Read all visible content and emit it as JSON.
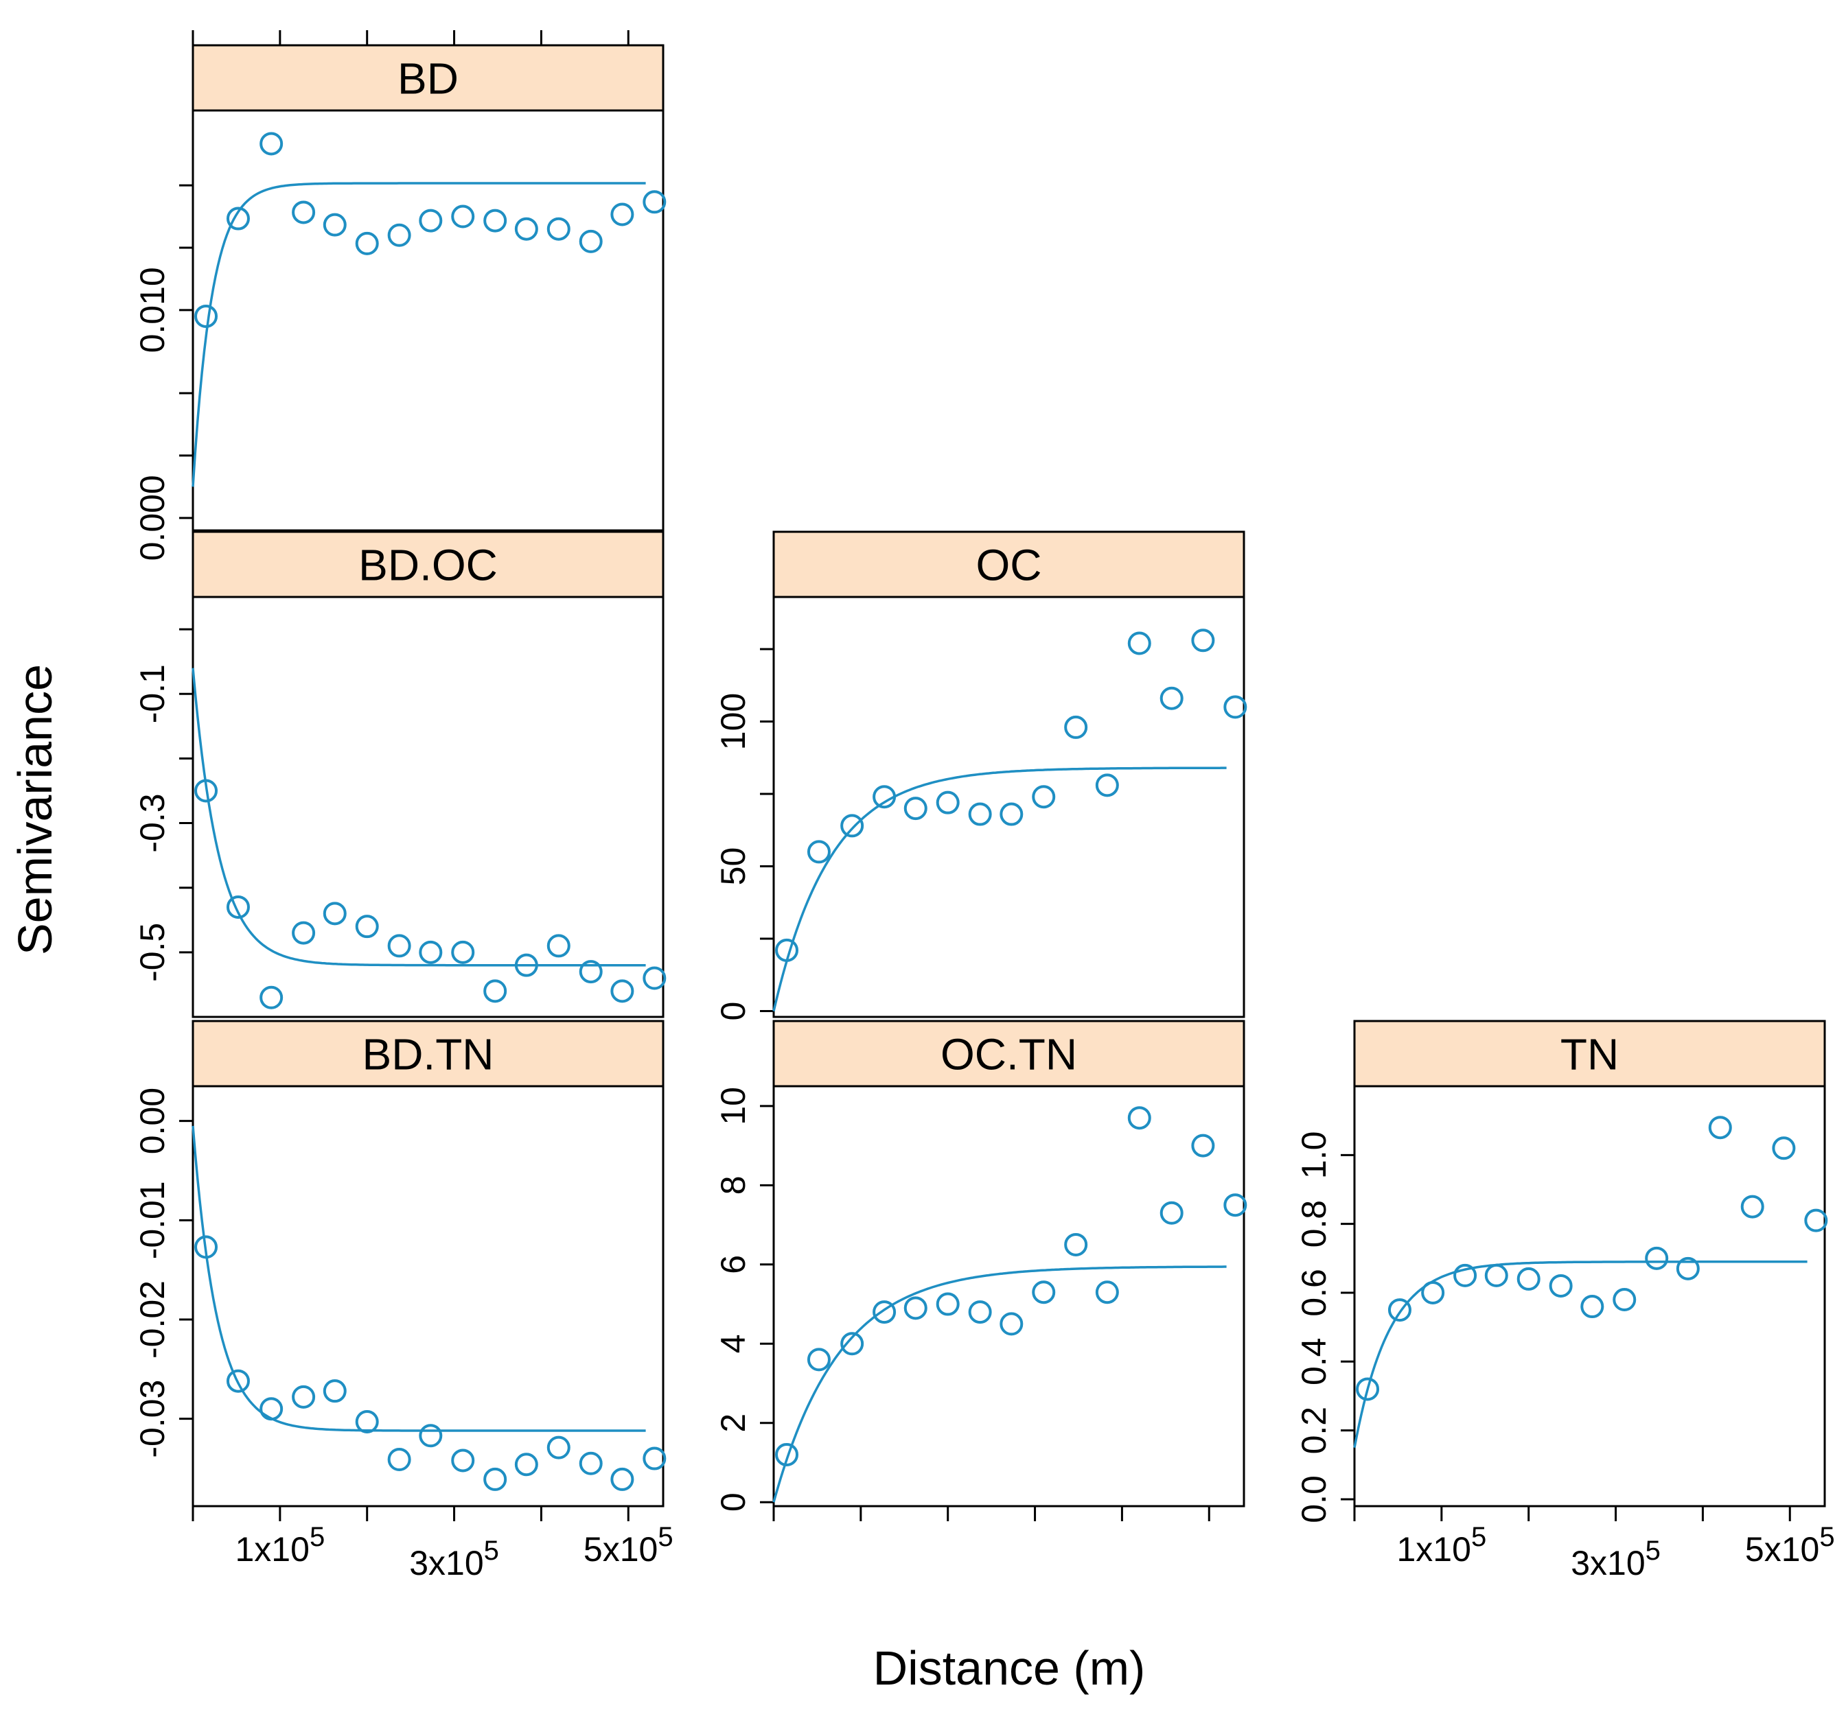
{
  "chart_data": {
    "type": "scatter",
    "title": "",
    "xlabel": "Distance (m)",
    "ylabel": "Semivariance",
    "xlim": [
      0,
      540000
    ],
    "grid": false,
    "legend": "none",
    "colors": {
      "points": "#1F8FC3",
      "fit_line": "#1F8FC3",
      "strip_fill": "#FDE1C6",
      "frame": "#000000"
    },
    "x_tick_labels": [
      {
        "base": "1x10",
        "exp": "5",
        "value": 100000
      },
      {
        "base": "3x10",
        "exp": "5",
        "value": 300000
      },
      {
        "base": "5x10",
        "exp": "5",
        "value": 500000
      }
    ],
    "x_ticks": [
      0,
      100000,
      200000,
      300000,
      400000,
      500000
    ],
    "panels": [
      {
        "name": "BD",
        "row": 0,
        "col": 0,
        "ylim": [
          -0.0006,
          0.0196
        ],
        "yticks": [
          0.0,
          0.003,
          0.006,
          0.01,
          0.013,
          0.016
        ],
        "ytick_labels": [
          {
            "text": "0.000",
            "value": 0.0
          },
          {
            "text": "0.010",
            "value": 0.01
          }
        ],
        "y_axis_side": "left",
        "x_axis_side": "top",
        "model": {
          "nugget": 0.0015,
          "sill": 0.0161,
          "range": 22000
        },
        "points": {
          "x": [
            15000,
            52000,
            90000,
            127000,
            163000,
            200000,
            237000,
            273000,
            310000,
            347000,
            383000,
            420000,
            457000,
            493000,
            530000
          ],
          "y": [
            0.0097,
            0.0144,
            0.018,
            0.0147,
            0.0141,
            0.0132,
            0.0136,
            0.0143,
            0.0145,
            0.0143,
            0.0139,
            0.0139,
            0.0133,
            0.0146,
            0.0152
          ]
        }
      },
      {
        "name": "BD.OC",
        "row": 1,
        "col": 0,
        "ylim": [
          -0.6,
          0.05
        ],
        "yticks": [
          0,
          -0.1,
          -0.2,
          -0.3,
          -0.4,
          -0.5
        ],
        "ytick_labels": [
          {
            "text": "-0.1",
            "value": -0.1
          },
          {
            "text": "-0.3",
            "value": -0.3
          },
          {
            "text": "-0.5",
            "value": -0.5
          }
        ],
        "y_axis_side": "left",
        "model": {
          "nugget": -0.06,
          "sill": -0.52,
          "range": 30000
        },
        "points": {
          "x": [
            15000,
            52000,
            90000,
            127000,
            163000,
            200000,
            237000,
            273000,
            310000,
            347000,
            383000,
            420000,
            457000,
            493000,
            530000
          ],
          "y": [
            -0.25,
            -0.43,
            -0.57,
            -0.47,
            -0.44,
            -0.46,
            -0.49,
            -0.5,
            -0.5,
            -0.56,
            -0.52,
            -0.49,
            -0.53,
            -0.56,
            -0.54
          ]
        }
      },
      {
        "name": "OC",
        "row": 1,
        "col": 1,
        "ylim": [
          -2,
          143
        ],
        "yticks": [
          0,
          25,
          50,
          75,
          100,
          125
        ],
        "ytick_labels": [
          {
            "text": "0",
            "value": 0
          },
          {
            "text": "50",
            "value": 50
          },
          {
            "text": "100",
            "value": 100
          }
        ],
        "y_axis_side": "left",
        "model": {
          "nugget": 0,
          "sill": 84,
          "range": 65000
        },
        "points": {
          "x": [
            15000,
            52000,
            90000,
            127000,
            163000,
            200000,
            237000,
            273000,
            310000,
            347000,
            383000,
            420000,
            457000,
            493000,
            530000
          ],
          "y": [
            21,
            55,
            64,
            74,
            70,
            72,
            68,
            68,
            74,
            98,
            78,
            127,
            108,
            128,
            105
          ]
        }
      },
      {
        "name": "BD.TN",
        "row": 2,
        "col": 0,
        "ylim": [
          -0.0388,
          0.0035
        ],
        "yticks": [
          0.0,
          -0.01,
          -0.02,
          -0.03
        ],
        "ytick_labels": [
          {
            "text": "-0.03",
            "value": -0.03
          },
          {
            "text": "-0.02",
            "value": -0.02
          },
          {
            "text": "-0.01",
            "value": -0.01
          },
          {
            "text": "0.00",
            "value": 0.0
          }
        ],
        "y_axis_side": "left",
        "x_axis_side": "bottom",
        "model": {
          "nugget": -0.0005,
          "sill": -0.0312,
          "range": 28000
        },
        "points": {
          "x": [
            15000,
            52000,
            90000,
            127000,
            163000,
            200000,
            237000,
            273000,
            310000,
            347000,
            383000,
            420000,
            457000,
            493000,
            530000
          ],
          "y": [
            -0.0127,
            -0.0262,
            -0.029,
            -0.0278,
            -0.0272,
            -0.0303,
            -0.0341,
            -0.0317,
            -0.0342,
            -0.0361,
            -0.0346,
            -0.0329,
            -0.0345,
            -0.0361,
            -0.034
          ]
        }
      },
      {
        "name": "OC.TN",
        "row": 2,
        "col": 1,
        "ylim": [
          -0.1,
          10.5
        ],
        "yticks": [
          0,
          2,
          4,
          6,
          8,
          10
        ],
        "ytick_labels": [
          {
            "text": "0",
            "value": 0
          },
          {
            "text": "2",
            "value": 2
          },
          {
            "text": "4",
            "value": 4
          },
          {
            "text": "6",
            "value": 6
          },
          {
            "text": "8",
            "value": 8
          },
          {
            "text": "10",
            "value": 10
          }
        ],
        "y_axis_side": "left",
        "x_axis_side": "bottom",
        "model": {
          "nugget": 0,
          "sill": 5.95,
          "range": 75000
        },
        "points": {
          "x": [
            15000,
            52000,
            90000,
            127000,
            163000,
            200000,
            237000,
            273000,
            310000,
            347000,
            383000,
            420000,
            457000,
            493000,
            530000
          ],
          "y": [
            1.2,
            3.6,
            4.0,
            4.8,
            4.9,
            5.0,
            4.8,
            4.5,
            5.3,
            6.5,
            5.3,
            9.7,
            7.3,
            9.0,
            7.5
          ]
        }
      },
      {
        "name": "TN",
        "row": 2,
        "col": 2,
        "ylim": [
          -0.02,
          1.2
        ],
        "yticks": [
          0.0,
          0.2,
          0.4,
          0.6,
          0.8,
          1.0
        ],
        "ytick_labels": [
          {
            "text": "0.0",
            "value": 0.0
          },
          {
            "text": "0.2",
            "value": 0.2
          },
          {
            "text": "0.4",
            "value": 0.4
          },
          {
            "text": "0.6",
            "value": 0.6
          },
          {
            "text": "0.8",
            "value": 0.8
          },
          {
            "text": "1.0",
            "value": 1.0
          }
        ],
        "y_axis_side": "left",
        "x_axis_side": "bottom",
        "model": {
          "nugget": 0.15,
          "sill": 0.69,
          "range": 40000
        },
        "points": {
          "x": [
            15000,
            52000,
            90000,
            127000,
            163000,
            200000,
            237000,
            273000,
            310000,
            347000,
            383000,
            420000,
            457000,
            493000,
            530000
          ],
          "y": [
            0.32,
            0.55,
            0.6,
            0.65,
            0.65,
            0.64,
            0.62,
            0.56,
            0.58,
            0.7,
            0.67,
            1.08,
            0.85,
            1.02,
            0.81
          ]
        }
      }
    ]
  }
}
